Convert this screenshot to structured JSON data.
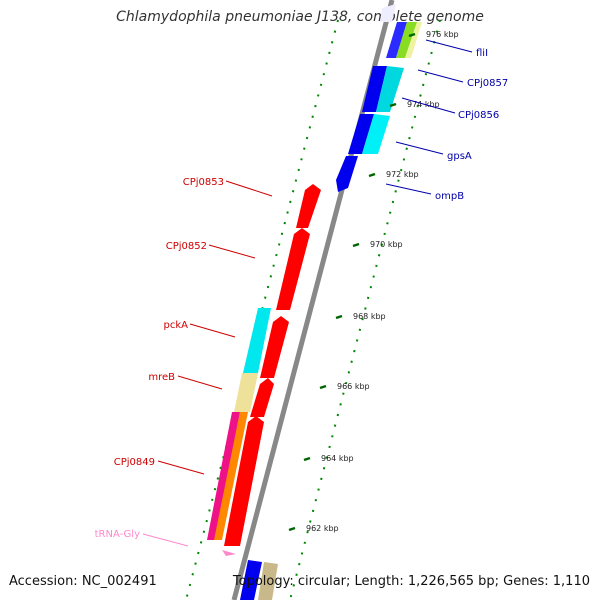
{
  "title": "Chlamydophila pneumoniae J138, complete genome",
  "footer": {
    "accession": "Accession: NC_002491",
    "summary": "Topology: circular; Length: 1,226,565 bp; Genes: 1,110"
  },
  "colors": {
    "forward_label": "#0000aa",
    "reverse_label": "#cc0000",
    "trna_label": "#ff88cc",
    "backbone": "#888888",
    "gc_skew": "#008800",
    "scale_tick": "#006600"
  },
  "scale_ticks": [
    {
      "label": "962 kbp"
    },
    {
      "label": "964 kbp"
    },
    {
      "label": "966 kbp"
    },
    {
      "label": "968 kbp"
    },
    {
      "label": "970 kbp"
    },
    {
      "label": "972 kbp"
    },
    {
      "label": "974 kbp"
    },
    {
      "label": "976 kbp"
    }
  ],
  "forward_labels": [
    {
      "text": "fliI"
    },
    {
      "text": "CPj0857"
    },
    {
      "text": "CPj0856"
    },
    {
      "text": "gpsA"
    },
    {
      "text": "ompB"
    }
  ],
  "reverse_labels": [
    {
      "text": "CPj0853"
    },
    {
      "text": "CPj0852"
    },
    {
      "text": "pckA"
    },
    {
      "text": "mreB"
    },
    {
      "text": "CPj0849"
    },
    {
      "text": "tRNA-Gly"
    }
  ]
}
